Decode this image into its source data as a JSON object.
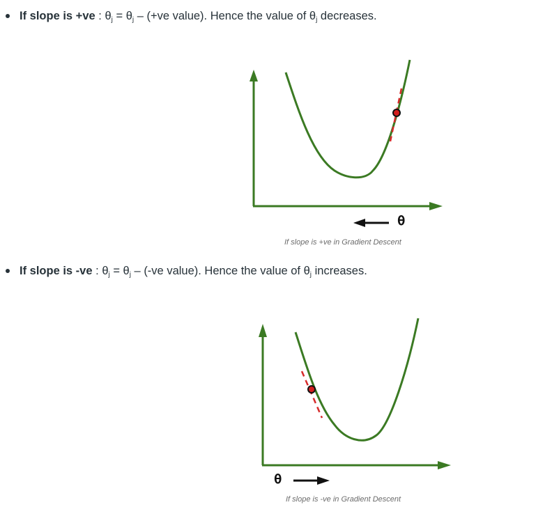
{
  "bullet1": {
    "lead": "If slope is +ve",
    "sep": " : ",
    "theta": "θ",
    "sub": "j",
    "eq": " = ",
    "minus": " – (+ve value). Hence the value of ",
    "tail": " decreases."
  },
  "figure1": {
    "theta_label": "θ",
    "arrow_direction": "left",
    "caption": "If slope is +ve in Gradient Descent"
  },
  "bullet2": {
    "lead": "If slope is -ve",
    "sep": " : ",
    "theta": "θ",
    "sub": "j",
    "eq": " = ",
    "minus": " – (-ve value). Hence the value of ",
    "tail": " increases."
  },
  "figure2": {
    "theta_label": "θ",
    "arrow_direction": "right",
    "caption": "If slope is -ve in Gradient Descent"
  },
  "colors": {
    "curve": "#3b7a23",
    "axis": "#3b7a23",
    "tangent": "#d62b2b",
    "point": "#d41f1f",
    "arrow": "#111111",
    "text": "#273239"
  }
}
